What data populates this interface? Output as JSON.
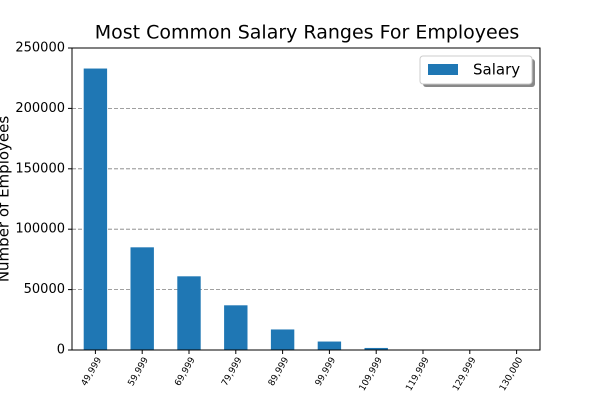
{
  "chart_data": {
    "type": "bar",
    "title": "Most Common Salary Ranges For Employees",
    "y_label": "Number of Employees",
    "categories": [
      "49,999",
      "59,999",
      "69,999",
      "79,999",
      "89,999",
      "99,999",
      "109,999",
      "119,999",
      "129,999",
      "130,000"
    ],
    "series": [
      {
        "name": "Salary",
        "color": "#1f77b4",
        "values": [
          233000,
          85000,
          61000,
          37000,
          17000,
          7000,
          1700,
          300,
          50,
          10
        ]
      }
    ],
    "ylim": [
      0,
      250000
    ],
    "yticks": [
      0,
      50000,
      100000,
      150000,
      200000,
      250000
    ],
    "grid": true,
    "legend": "upper right"
  }
}
